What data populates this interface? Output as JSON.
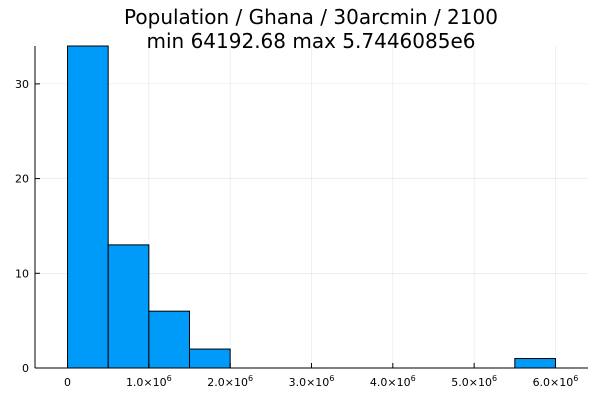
{
  "chart_data": {
    "type": "bar",
    "title": "Population / Ghana / 30arcmin / 2100",
    "subtitle": "min 64192.68  max 5.7446085e6",
    "xlabel": "",
    "ylabel": "",
    "xlim": [
      -400000,
      6400000
    ],
    "ylim": [
      0,
      34
    ],
    "grid": true,
    "legend": "none",
    "bar_color": "#009af9",
    "bins": [
      {
        "x0": 0,
        "x1": 500000,
        "count": 34
      },
      {
        "x0": 500000,
        "x1": 1000000,
        "count": 13
      },
      {
        "x0": 1000000,
        "x1": 1500000,
        "count": 6
      },
      {
        "x0": 1500000,
        "x1": 2000000,
        "count": 2
      },
      {
        "x0": 5500000,
        "x1": 6000000,
        "count": 1
      }
    ],
    "xticks": [
      {
        "value": 0,
        "mantissa": "0",
        "exp": ""
      },
      {
        "value": 1000000,
        "mantissa": "1.0×10",
        "exp": "6"
      },
      {
        "value": 2000000,
        "mantissa": "2.0×10",
        "exp": "6"
      },
      {
        "value": 3000000,
        "mantissa": "3.0×10",
        "exp": "6"
      },
      {
        "value": 4000000,
        "mantissa": "4.0×10",
        "exp": "6"
      },
      {
        "value": 5000000,
        "mantissa": "5.0×10",
        "exp": "6"
      },
      {
        "value": 6000000,
        "mantissa": "6.0×10",
        "exp": "6"
      }
    ],
    "yticks": [
      0,
      10,
      20,
      30
    ]
  }
}
